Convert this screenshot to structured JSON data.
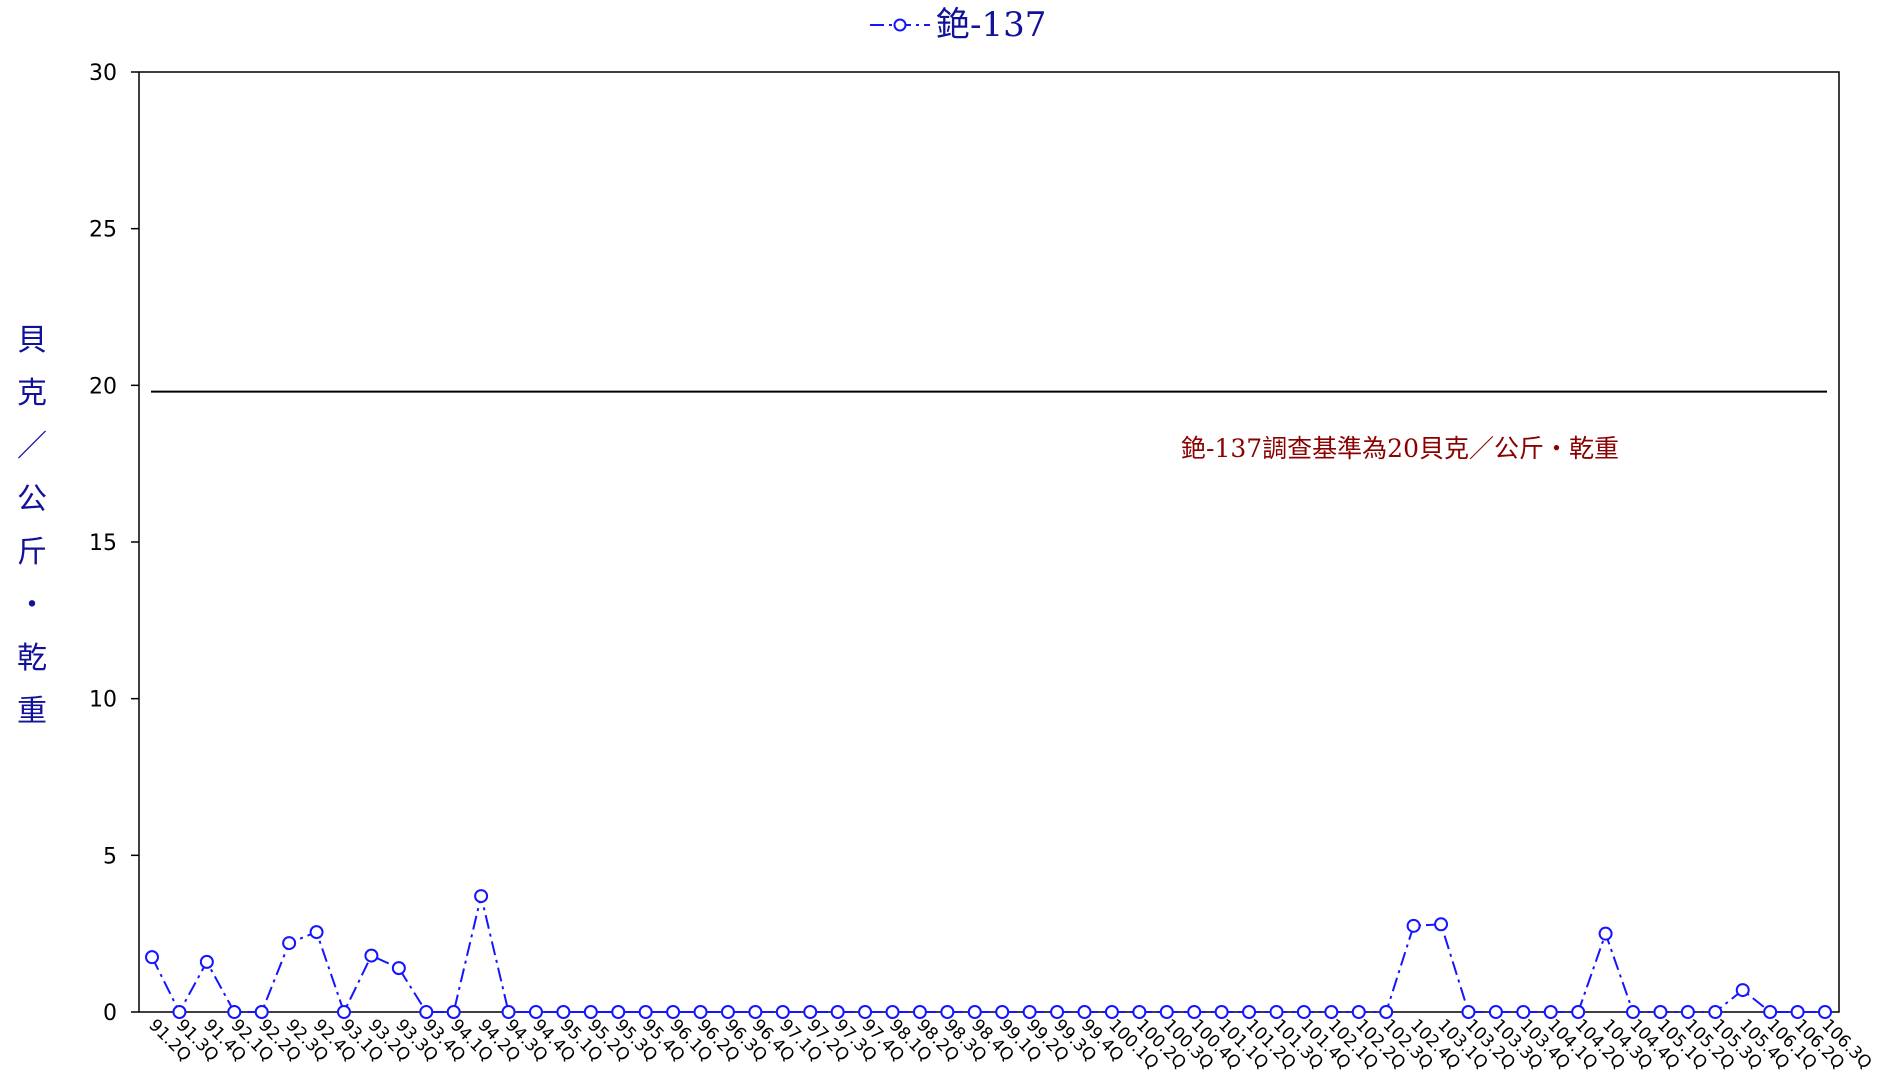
{
  "colors": {
    "series": "#1515ff",
    "title_text": "#111199",
    "ylabel_text": "#111199",
    "reference_line": "#000000",
    "annotation_text": "#8b0000",
    "axis": "#000000"
  },
  "chart_data": {
    "type": "line",
    "legend": {
      "placement": "top-center",
      "label": "銫-137"
    },
    "ylabel": "貝克／公斤・乾重",
    "xlabel": "",
    "ylim": [
      0,
      30
    ],
    "yticks": [
      "0",
      "5",
      "10",
      "15",
      "20",
      "25",
      "30"
    ],
    "grid": false,
    "categories": [
      "91.2Q",
      "91.3Q",
      "91.4Q",
      "92.1Q",
      "92.2Q",
      "92.3Q",
      "92.4Q",
      "93.1Q",
      "93.2Q",
      "93.3Q",
      "93.4Q",
      "94.1Q",
      "94.2Q",
      "94.3Q",
      "94.4Q",
      "95.1Q",
      "95.2Q",
      "95.3Q",
      "95.4Q",
      "96.1Q",
      "96.2Q",
      "96.3Q",
      "96.4Q",
      "97.1Q",
      "97.2Q",
      "97.3Q",
      "97.4Q",
      "98.1Q",
      "98.2Q",
      "98.3Q",
      "98.4Q",
      "99.1Q",
      "99.2Q",
      "99.3Q",
      "99.4Q",
      "100.1Q",
      "100.2Q",
      "100.3Q",
      "100.4Q",
      "101.1Q",
      "101.2Q",
      "101.3Q",
      "101.4Q",
      "102.1Q",
      "102.2Q",
      "102.3Q",
      "102.4Q",
      "103.1Q",
      "103.2Q",
      "103.3Q",
      "103.4Q",
      "104.1Q",
      "104.2Q",
      "104.3Q",
      "104.4Q",
      "105.1Q",
      "105.2Q",
      "105.3Q",
      "105.4Q",
      "106.1Q",
      "106.2Q",
      "106.3Q"
    ],
    "series": [
      {
        "name": "銫-137",
        "values": [
          1.75,
          0,
          1.6,
          0,
          0,
          2.2,
          2.55,
          0,
          1.8,
          1.4,
          0,
          0,
          3.7,
          0,
          0,
          0,
          0,
          0,
          0,
          0,
          0,
          0,
          0,
          0,
          0,
          0,
          0,
          0,
          0,
          0,
          0,
          0,
          0,
          0,
          0,
          0,
          0,
          0,
          0,
          0,
          0,
          0,
          0,
          0,
          0,
          0,
          2.75,
          2.8,
          0,
          0,
          0,
          0,
          0,
          2.5,
          0,
          0,
          0,
          0,
          0.7,
          0,
          0,
          0
        ]
      }
    ],
    "reference_line": {
      "value": 19.8,
      "label": "銫-137調查基準為20貝克／公斤・乾重"
    }
  }
}
